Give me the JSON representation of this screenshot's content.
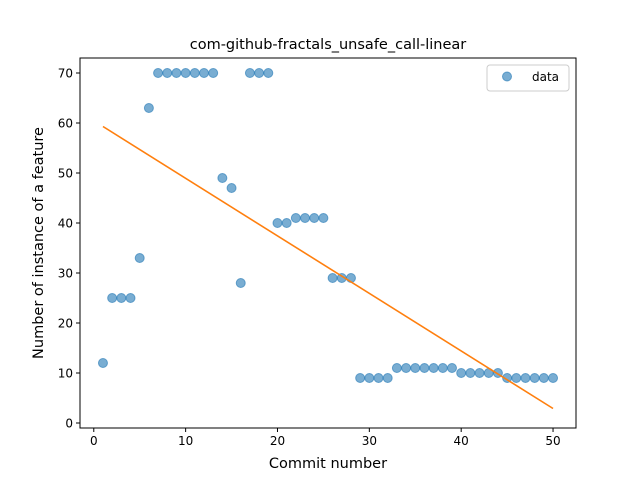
{
  "chart_data": {
    "type": "scatter",
    "title": "com-github-fractals_unsafe_call-linear",
    "xlabel": "Commit number",
    "ylabel": "Number of instance of a feature",
    "xlim": [
      -1.5,
      52.5
    ],
    "ylim": [
      -1,
      73
    ],
    "xticks": [
      0,
      10,
      20,
      30,
      40,
      50
    ],
    "yticks": [
      0,
      10,
      20,
      30,
      40,
      50,
      60,
      70
    ],
    "grid": false,
    "legend_position": "top-right",
    "series": [
      {
        "name": "data",
        "type": "scatter",
        "color": "#1f77b4",
        "x": [
          1,
          2,
          3,
          4,
          5,
          6,
          7,
          8,
          9,
          10,
          11,
          12,
          13,
          14,
          15,
          16,
          17,
          18,
          19,
          20,
          21,
          22,
          23,
          24,
          25,
          26,
          27,
          28,
          29,
          30,
          31,
          32,
          33,
          34,
          35,
          36,
          37,
          38,
          39,
          40,
          41,
          42,
          43,
          44,
          45,
          46,
          47,
          48,
          49,
          50
        ],
        "y": [
          12,
          25,
          25,
          25,
          33,
          63,
          70,
          70,
          70,
          70,
          70,
          70,
          70,
          49,
          47,
          28,
          70,
          70,
          70,
          40,
          40,
          41,
          41,
          41,
          41,
          29,
          29,
          29,
          9,
          9,
          9,
          9,
          11,
          11,
          11,
          11,
          11,
          11,
          11,
          10,
          10,
          10,
          10,
          10,
          9,
          9,
          9,
          9,
          9,
          9
        ]
      },
      {
        "type": "line",
        "color": "#ff7f0e",
        "x": [
          1,
          50
        ],
        "y": [
          59.3,
          2.9
        ]
      }
    ]
  }
}
